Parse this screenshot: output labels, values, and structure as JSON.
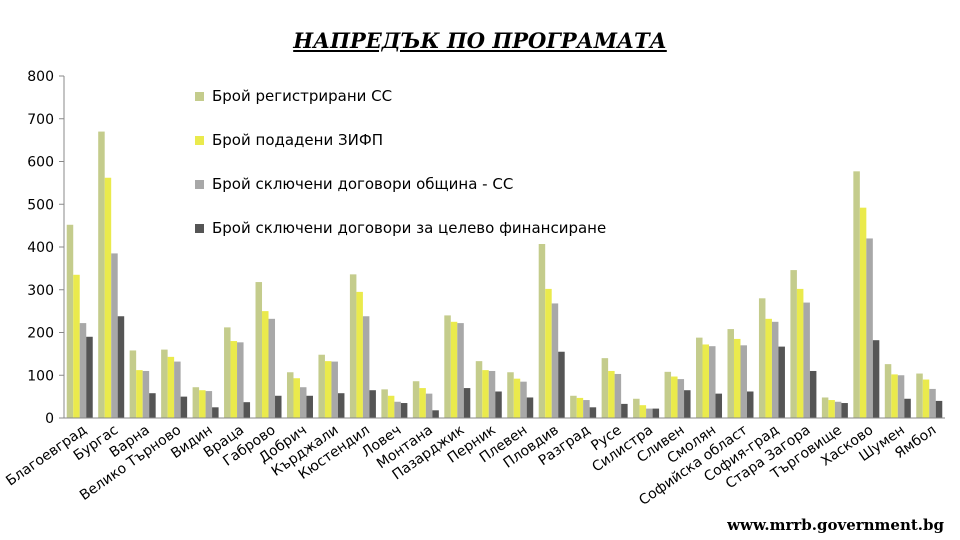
{
  "chart_data": {
    "type": "bar",
    "title": "НАПРЕДЪК ПО ПРОГРАМАТА",
    "ylim": [
      0,
      800
    ],
    "yticks": [
      0,
      100,
      200,
      300,
      400,
      500,
      600,
      700,
      800
    ],
    "grid": false,
    "legend_position": "top-left",
    "categories": [
      "Благоевград",
      "Бургас",
      "Варна",
      "Велико Търново",
      "Видин",
      "Враца",
      "Габрово",
      "Добрич",
      "Кърджали",
      "Кюстендил",
      "Ловеч",
      "Монтана",
      "Пазарджик",
      "Перник",
      "Плевен",
      "Пловдив",
      "Разград",
      "Русе",
      "Силистра",
      "Сливен",
      "Смолян",
      "Софийска област",
      "София-град",
      "Стара Загора",
      "Търговище",
      "Хасково",
      "Шумен",
      "Ямбол"
    ],
    "series": [
      {
        "name": "Брой регистрирани СС",
        "color": "#c4cc8c",
        "values": [
          452,
          670,
          158,
          160,
          72,
          212,
          318,
          107,
          148,
          336,
          67,
          86,
          240,
          133,
          107,
          407,
          52,
          140,
          45,
          108,
          188,
          208,
          280,
          346,
          48,
          577,
          126,
          104
        ]
      },
      {
        "name": "Брой подадени ЗИФП",
        "color": "#eaea4c",
        "values": [
          335,
          562,
          112,
          143,
          65,
          180,
          250,
          93,
          133,
          295,
          52,
          70,
          225,
          112,
          92,
          302,
          47,
          110,
          30,
          97,
          172,
          185,
          232,
          302,
          42,
          492,
          102,
          90
        ]
      },
      {
        "name": "Брой сключени договори община -  СС",
        "color": "#a8a8a8",
        "values": [
          222,
          385,
          110,
          132,
          63,
          177,
          232,
          72,
          132,
          238,
          38,
          57,
          222,
          110,
          85,
          268,
          42,
          103,
          22,
          91,
          168,
          170,
          225,
          270,
          38,
          420,
          100,
          68
        ]
      },
      {
        "name": "Брой сключени договори за целево финансиране",
        "color": "#555555",
        "values": [
          190,
          238,
          58,
          50,
          25,
          37,
          52,
          52,
          58,
          65,
          35,
          18,
          70,
          62,
          48,
          155,
          25,
          33,
          22,
          65,
          57,
          62,
          167,
          110,
          35,
          182,
          45,
          40
        ]
      }
    ]
  },
  "source": "www.mrrb.government.bg"
}
